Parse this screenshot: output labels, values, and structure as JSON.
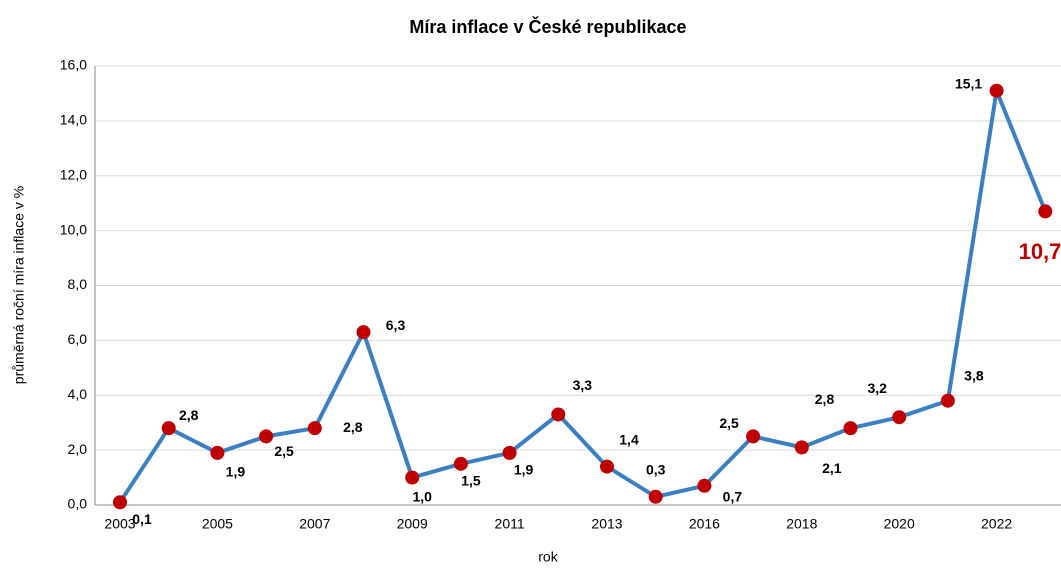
{
  "chart_data": {
    "type": "line",
    "title": "Míra inflace v České  republikace",
    "x_label": "rok",
    "y_label": "průměrná roční míra  inflace v %",
    "categories": [
      "2003",
      null,
      "2005",
      null,
      "2007",
      null,
      "2009",
      null,
      "2011",
      null,
      "2013",
      null,
      "2016",
      null,
      "2018",
      null,
      "2020",
      null,
      "2022",
      null
    ],
    "series": [
      {
        "name": "míra inflace",
        "color": "#3a7fc1",
        "marker_color": "#c00000",
        "values": [
          0.1,
          2.8,
          1.9,
          2.5,
          2.8,
          6.3,
          1.0,
          1.5,
          1.9,
          3.3,
          1.4,
          0.3,
          0.7,
          2.5,
          2.1,
          2.8,
          3.2,
          3.8,
          15.1,
          10.7
        ],
        "value_labels": [
          "0,1",
          "2,8",
          "1,9",
          "2,5",
          "2,8",
          "6,3",
          "1,0",
          "1,5",
          "1,9",
          "3,3",
          "1,4",
          "0,3",
          "0,7",
          "2,5",
          "2,1",
          "2,8",
          "3,2",
          "3,8",
          "15,1",
          "10,7"
        ]
      }
    ],
    "ylim": [
      0,
      16
    ],
    "yticks": [
      {
        "value": 0,
        "label": "0,0"
      },
      {
        "value": 2,
        "label": "2,0"
      },
      {
        "value": 4,
        "label": "4,0"
      },
      {
        "value": 6,
        "label": "6,0"
      },
      {
        "value": 8,
        "label": "8,0"
      },
      {
        "value": 10,
        "label": "10,0"
      },
      {
        "value": 12,
        "label": "12,0"
      },
      {
        "value": 14,
        "label": "14,0"
      },
      {
        "value": 16,
        "label": "16,0"
      }
    ],
    "grid": true
  }
}
